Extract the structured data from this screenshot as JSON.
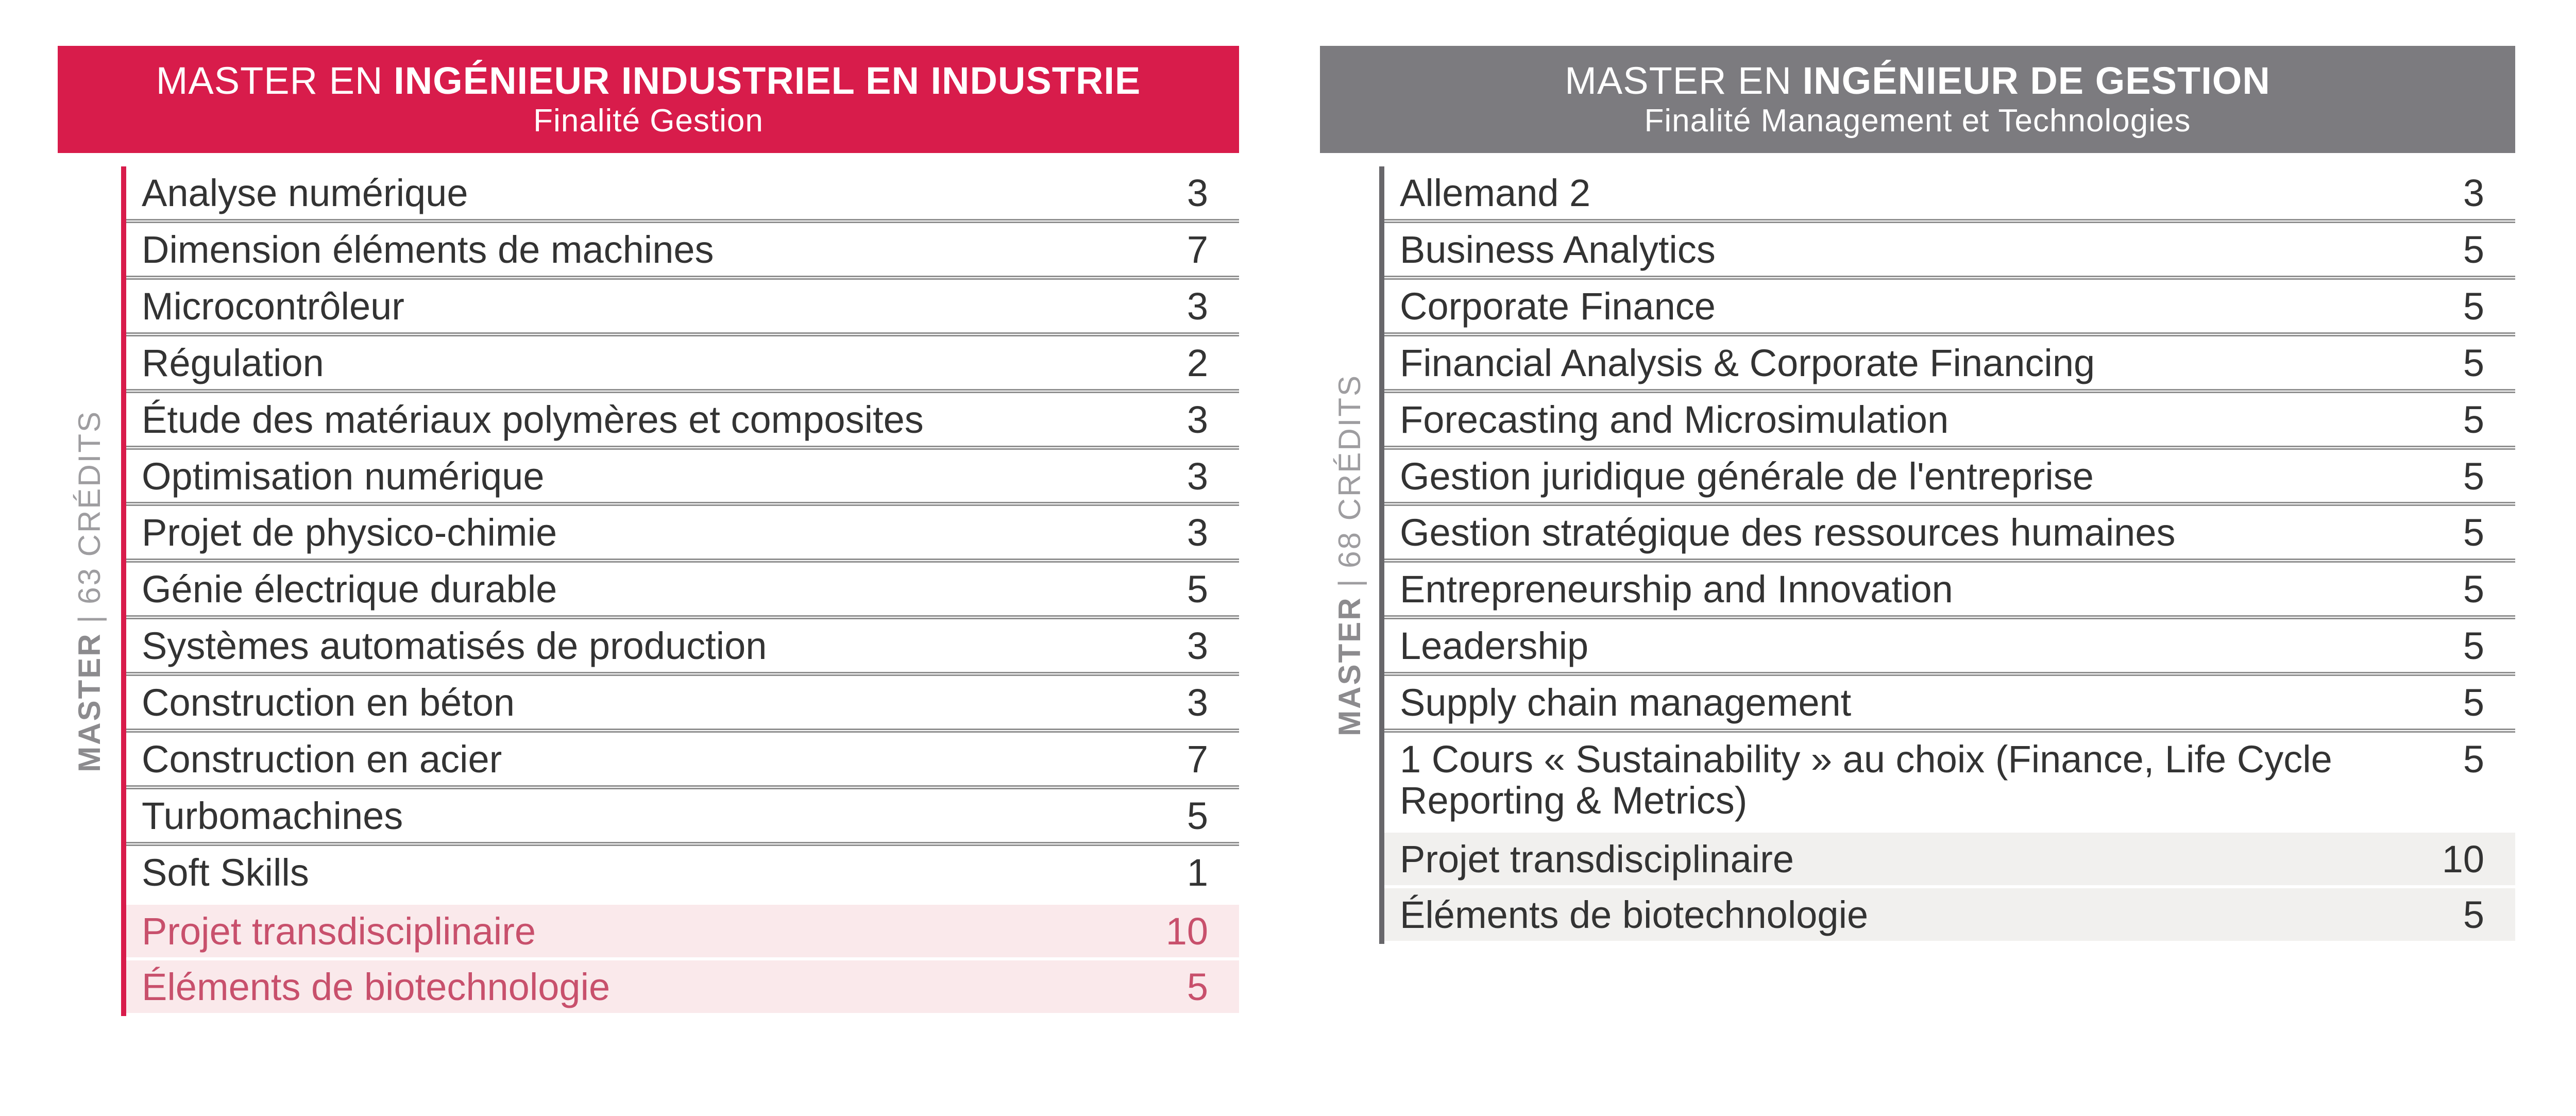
{
  "colors": {
    "red": "#D81C4B",
    "gray": "#7C7B7F",
    "pink_bg": "#FAE9EB",
    "pink_text": "#C8506C",
    "gray_bg": "#F1F0EE",
    "side_border_gray": "#68676B",
    "separator": "#8F8F8F",
    "label": "#9E9DA0",
    "label_bold": "#8C8B8E",
    "text": "#333333"
  },
  "tables": [
    {
      "title": "Master en Ingénieur industriel en industrie — Finalité Gestion",
      "header": {
        "title_prefix": "MASTER EN",
        "title_bold": "INGÉNIEUR INDUSTRIEL EN INDUSTRIE",
        "subtitle": "Finalité Gestion"
      },
      "side_label": {
        "program": "MASTER",
        "separator": "|",
        "credits": "63 CRÉDITS"
      },
      "rows": [
        {
          "name": "Analyse numérique",
          "credits": "3",
          "highlight": false
        },
        {
          "name": "Dimension éléments de machines",
          "credits": "7",
          "highlight": false
        },
        {
          "name": "Microcontrôleur",
          "credits": "3",
          "highlight": false
        },
        {
          "name": "Régulation",
          "credits": "2",
          "highlight": false
        },
        {
          "name": "Étude des matériaux polymères et composites",
          "credits": "3",
          "highlight": false
        },
        {
          "name": "Optimisation numérique",
          "credits": "3",
          "highlight": false
        },
        {
          "name": "Projet de physico-chimie",
          "credits": "3",
          "highlight": false
        },
        {
          "name": "Génie électrique durable",
          "credits": "5",
          "highlight": false
        },
        {
          "name": "Systèmes automatisés de production",
          "credits": "3",
          "highlight": false
        },
        {
          "name": "Construction en béton",
          "credits": "3",
          "highlight": false
        },
        {
          "name": "Construction en acier",
          "credits": "7",
          "highlight": false
        },
        {
          "name": "Turbomachines",
          "credits": "5",
          "highlight": false
        },
        {
          "name": "Soft Skills",
          "credits": "1",
          "highlight": false
        },
        {
          "name": "Projet transdisciplinaire",
          "credits": "10",
          "highlight": true
        },
        {
          "name": "Éléments de biotechnologie",
          "credits": "5",
          "highlight": true
        }
      ]
    },
    {
      "title": "Master en Ingénieur de gestion — Finalité Management et Technologies",
      "header": {
        "title_prefix": "MASTER EN",
        "title_bold": "INGÉNIEUR DE GESTION",
        "subtitle": "Finalité Management et Technologies"
      },
      "side_label": {
        "program": "MASTER",
        "separator": "|",
        "credits": "68 CRÉDITS"
      },
      "rows": [
        {
          "name": "Allemand 2",
          "credits": "3",
          "highlight": false
        },
        {
          "name": "Business Analytics",
          "credits": "5",
          "highlight": false
        },
        {
          "name": "Corporate Finance",
          "credits": "5",
          "highlight": false
        },
        {
          "name": "Financial Analysis & Corporate Financing",
          "credits": "5",
          "highlight": false
        },
        {
          "name": "Forecasting and Microsimulation",
          "credits": "5",
          "highlight": false
        },
        {
          "name": "Gestion juridique générale de l'entreprise",
          "credits": "5",
          "highlight": false
        },
        {
          "name": "Gestion stratégique des ressources humaines",
          "credits": "5",
          "highlight": false
        },
        {
          "name": "Entrepreneurship and Innovation",
          "credits": "5",
          "highlight": false
        },
        {
          "name": "Leadership",
          "credits": "5",
          "highlight": false
        },
        {
          "name": "Supply chain management",
          "credits": "5",
          "highlight": false
        },
        {
          "name": "1 Cours « Sustainability » au choix (Finance, Life Cycle Reporting & Metrics)",
          "credits": "5",
          "highlight": false
        },
        {
          "name": "Projet transdisciplinaire",
          "credits": "10",
          "highlight": true
        },
        {
          "name": "Éléments de biotechnologie",
          "credits": "5",
          "highlight": true
        }
      ]
    }
  ]
}
